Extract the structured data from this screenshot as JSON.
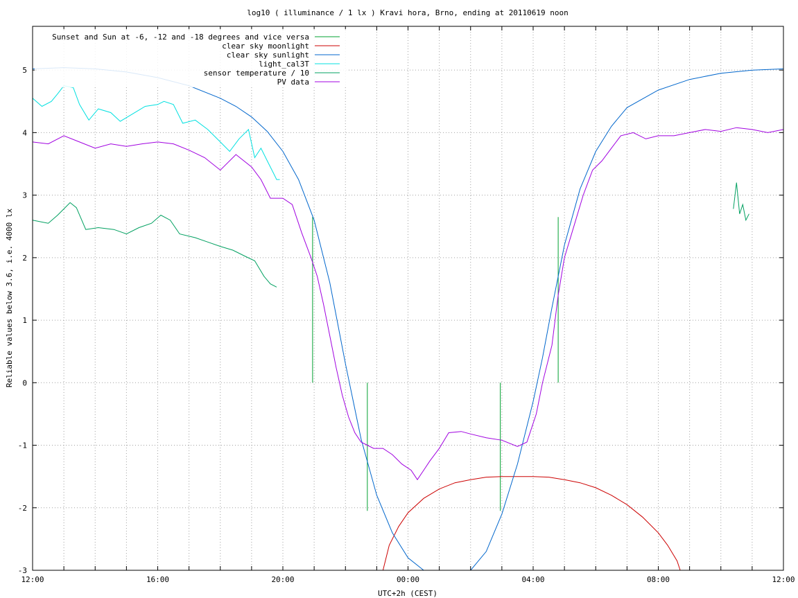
{
  "chart_data": {
    "type": "line",
    "title": "log10 ( illuminance / 1 lx ) Kravi hora, Brno, ending at 20110619 noon",
    "xlabel": "UTC+2h (CEST)",
    "ylabel": "Reliable values below 3.6, i.e. 4000 lx",
    "xlim": [
      12,
      36
    ],
    "ylim": [
      -3,
      5.7
    ],
    "grid": true,
    "legend_position": "top-left",
    "x_ticks": [
      {
        "value": 12,
        "label": "12:00"
      },
      {
        "value": 13,
        "label": ""
      },
      {
        "value": 14,
        "label": ""
      },
      {
        "value": 15,
        "label": ""
      },
      {
        "value": 16,
        "label": "16:00"
      },
      {
        "value": 17,
        "label": ""
      },
      {
        "value": 18,
        "label": ""
      },
      {
        "value": 19,
        "label": ""
      },
      {
        "value": 20,
        "label": "20:00"
      },
      {
        "value": 21,
        "label": ""
      },
      {
        "value": 22,
        "label": ""
      },
      {
        "value": 23,
        "label": ""
      },
      {
        "value": 24,
        "label": "00:00"
      },
      {
        "value": 25,
        "label": ""
      },
      {
        "value": 26,
        "label": ""
      },
      {
        "value": 27,
        "label": ""
      },
      {
        "value": 28,
        "label": "04:00"
      },
      {
        "value": 29,
        "label": ""
      },
      {
        "value": 30,
        "label": ""
      },
      {
        "value": 31,
        "label": ""
      },
      {
        "value": 32,
        "label": "08:00"
      },
      {
        "value": 33,
        "label": ""
      },
      {
        "value": 34,
        "label": ""
      },
      {
        "value": 35,
        "label": ""
      },
      {
        "value": 36,
        "label": "12:00"
      }
    ],
    "y_ticks": [
      {
        "value": -3,
        "label": "-3"
      },
      {
        "value": -2,
        "label": "-2"
      },
      {
        "value": -1,
        "label": "-1"
      },
      {
        "value": 0,
        "label": "0"
      },
      {
        "value": 1,
        "label": "1"
      },
      {
        "value": 2,
        "label": "2"
      },
      {
        "value": 3,
        "label": "3"
      },
      {
        "value": 4,
        "label": "4"
      },
      {
        "value": 5,
        "label": "5"
      }
    ],
    "series": [
      {
        "name": "Sunset and Sun at -6, -12 and -18 degrees and vice versa",
        "color": "#00a030",
        "style": "impulses",
        "points": [
          [
            20.95,
            2.65
          ],
          [
            22.7,
            -2.05
          ],
          [
            26.95,
            -2.05
          ],
          [
            28.8,
            2.65
          ]
        ]
      },
      {
        "name": "clear sky moonlight",
        "color": "#cc0000",
        "style": "line",
        "points": [
          [
            23.2,
            -3.0
          ],
          [
            23.4,
            -2.6
          ],
          [
            23.7,
            -2.3
          ],
          [
            24,
            -2.08
          ],
          [
            24.5,
            -1.85
          ],
          [
            25,
            -1.7
          ],
          [
            25.5,
            -1.6
          ],
          [
            26,
            -1.55
          ],
          [
            26.5,
            -1.51
          ],
          [
            27,
            -1.5
          ],
          [
            28,
            -1.5
          ],
          [
            28.5,
            -1.51
          ],
          [
            29,
            -1.55
          ],
          [
            29.5,
            -1.6
          ],
          [
            30,
            -1.68
          ],
          [
            30.5,
            -1.8
          ],
          [
            31,
            -1.95
          ],
          [
            31.5,
            -2.15
          ],
          [
            32,
            -2.4
          ],
          [
            32.3,
            -2.6
          ],
          [
            32.6,
            -2.85
          ],
          [
            32.7,
            -3.0
          ]
        ]
      },
      {
        "name": "clear sky sunlight",
        "color": "#0066cc",
        "style": "line",
        "points": [
          [
            12,
            5.02
          ],
          [
            13,
            5.04
          ],
          [
            14,
            5.02
          ],
          [
            15,
            4.97
          ],
          [
            16,
            4.88
          ],
          [
            17,
            4.75
          ],
          [
            18,
            4.55
          ],
          [
            18.5,
            4.42
          ],
          [
            19,
            4.25
          ],
          [
            19.5,
            4.02
          ],
          [
            20,
            3.7
          ],
          [
            20.5,
            3.25
          ],
          [
            21,
            2.6
          ],
          [
            21.5,
            1.6
          ],
          [
            22,
            0.3
          ],
          [
            22.5,
            -0.9
          ],
          [
            23,
            -1.8
          ],
          [
            23.5,
            -2.4
          ],
          [
            24,
            -2.8
          ],
          [
            24.5,
            -3.0
          ],
          [
            26,
            -3.0
          ],
          [
            26.5,
            -2.7
          ],
          [
            27,
            -2.1
          ],
          [
            27.5,
            -1.3
          ],
          [
            28,
            -0.3
          ],
          [
            28.3,
            0.4
          ],
          [
            28.6,
            1.2
          ],
          [
            29,
            2.2
          ],
          [
            29.5,
            3.1
          ],
          [
            30,
            3.7
          ],
          [
            30.5,
            4.1
          ],
          [
            31,
            4.4
          ],
          [
            32,
            4.68
          ],
          [
            33,
            4.85
          ],
          [
            34,
            4.95
          ],
          [
            35,
            5.0
          ],
          [
            36,
            5.02
          ]
        ]
      },
      {
        "name": "light_cal3T",
        "color": "#00e0e0",
        "style": "line",
        "points": [
          [
            12,
            4.55
          ],
          [
            12.3,
            4.42
          ],
          [
            12.6,
            4.5
          ],
          [
            12.8,
            4.62
          ],
          [
            13.0,
            4.75
          ],
          [
            13.3,
            4.72
          ],
          [
            13.5,
            4.45
          ],
          [
            13.8,
            4.2
          ],
          [
            14.1,
            4.38
          ],
          [
            14.5,
            4.32
          ],
          [
            14.8,
            4.18
          ],
          [
            15.2,
            4.3
          ],
          [
            15.6,
            4.42
          ],
          [
            16,
            4.45
          ],
          [
            16.2,
            4.5
          ],
          [
            16.5,
            4.45
          ],
          [
            16.8,
            4.15
          ],
          [
            17.2,
            4.2
          ],
          [
            17.6,
            4.05
          ],
          [
            18,
            3.85
          ],
          [
            18.3,
            3.7
          ],
          [
            18.6,
            3.9
          ],
          [
            18.9,
            4.05
          ],
          [
            19.1,
            3.6
          ],
          [
            19.3,
            3.75
          ],
          [
            19.5,
            3.55
          ],
          [
            19.7,
            3.35
          ],
          [
            19.8,
            3.25
          ],
          [
            19.9,
            3.25
          ]
        ]
      },
      {
        "name": "sensor temperature / 10",
        "color": "#00a060",
        "style": "line",
        "points": [
          [
            12,
            2.6
          ],
          [
            12.5,
            2.55
          ],
          [
            12.8,
            2.68
          ],
          [
            13.0,
            2.78
          ],
          [
            13.2,
            2.88
          ],
          [
            13.4,
            2.8
          ],
          [
            13.7,
            2.45
          ],
          [
            14.1,
            2.48
          ],
          [
            14.6,
            2.45
          ],
          [
            15.0,
            2.38
          ],
          [
            15.4,
            2.48
          ],
          [
            15.8,
            2.55
          ],
          [
            16.1,
            2.68
          ],
          [
            16.4,
            2.6
          ],
          [
            16.7,
            2.38
          ],
          [
            17.2,
            2.32
          ],
          [
            17.6,
            2.25
          ],
          [
            18.0,
            2.18
          ],
          [
            18.4,
            2.12
          ],
          [
            18.8,
            2.02
          ],
          [
            19.1,
            1.95
          ],
          [
            19.4,
            1.7
          ],
          [
            19.6,
            1.58
          ],
          [
            19.8,
            1.53
          ],
          [
            34.4,
            2.78
          ],
          [
            34.5,
            3.2
          ],
          [
            34.6,
            2.7
          ],
          [
            34.7,
            2.85
          ],
          [
            34.8,
            2.6
          ],
          [
            34.9,
            2.7
          ]
        ]
      },
      {
        "name": "PV data",
        "color": "#a000e0",
        "style": "line",
        "points": [
          [
            12,
            3.85
          ],
          [
            12.5,
            3.82
          ],
          [
            13,
            3.95
          ],
          [
            13.5,
            3.85
          ],
          [
            14,
            3.75
          ],
          [
            14.5,
            3.82
          ],
          [
            15,
            3.78
          ],
          [
            15.5,
            3.82
          ],
          [
            16,
            3.85
          ],
          [
            16.5,
            3.82
          ],
          [
            17,
            3.72
          ],
          [
            17.5,
            3.6
          ],
          [
            18,
            3.4
          ],
          [
            18.5,
            3.65
          ],
          [
            19,
            3.45
          ],
          [
            19.3,
            3.25
          ],
          [
            19.6,
            2.95
          ],
          [
            20,
            2.95
          ],
          [
            20.3,
            2.85
          ],
          [
            20.6,
            2.4
          ],
          [
            20.9,
            2.0
          ],
          [
            21.1,
            1.7
          ],
          [
            21.3,
            1.25
          ],
          [
            21.5,
            0.75
          ],
          [
            21.7,
            0.25
          ],
          [
            21.9,
            -0.2
          ],
          [
            22.1,
            -0.55
          ],
          [
            22.3,
            -0.8
          ],
          [
            22.5,
            -0.95
          ],
          [
            22.7,
            -1.0
          ],
          [
            22.9,
            -1.05
          ],
          [
            23.2,
            -1.05
          ],
          [
            23.5,
            -1.15
          ],
          [
            23.8,
            -1.3
          ],
          [
            24.1,
            -1.4
          ],
          [
            24.3,
            -1.55
          ],
          [
            24.5,
            -1.4
          ],
          [
            24.7,
            -1.25
          ],
          [
            25,
            -1.05
          ],
          [
            25.3,
            -0.8
          ],
          [
            25.7,
            -0.78
          ],
          [
            26,
            -0.82
          ],
          [
            26.5,
            -0.88
          ],
          [
            27,
            -0.92
          ],
          [
            27.5,
            -1.02
          ],
          [
            27.8,
            -0.95
          ],
          [
            28.1,
            -0.5
          ],
          [
            28.3,
            0.0
          ],
          [
            28.6,
            0.6
          ],
          [
            28.8,
            1.4
          ],
          [
            29.0,
            2.0
          ],
          [
            29.3,
            2.5
          ],
          [
            29.6,
            3.0
          ],
          [
            29.9,
            3.4
          ],
          [
            30.2,
            3.55
          ],
          [
            30.5,
            3.75
          ],
          [
            30.8,
            3.95
          ],
          [
            31.2,
            4.0
          ],
          [
            31.6,
            3.9
          ],
          [
            32,
            3.95
          ],
          [
            32.5,
            3.95
          ],
          [
            33,
            4.0
          ],
          [
            33.5,
            4.05
          ],
          [
            34,
            4.02
          ],
          [
            34.5,
            4.08
          ],
          [
            35,
            4.05
          ],
          [
            35.5,
            4.0
          ],
          [
            36,
            4.05
          ]
        ]
      }
    ]
  }
}
